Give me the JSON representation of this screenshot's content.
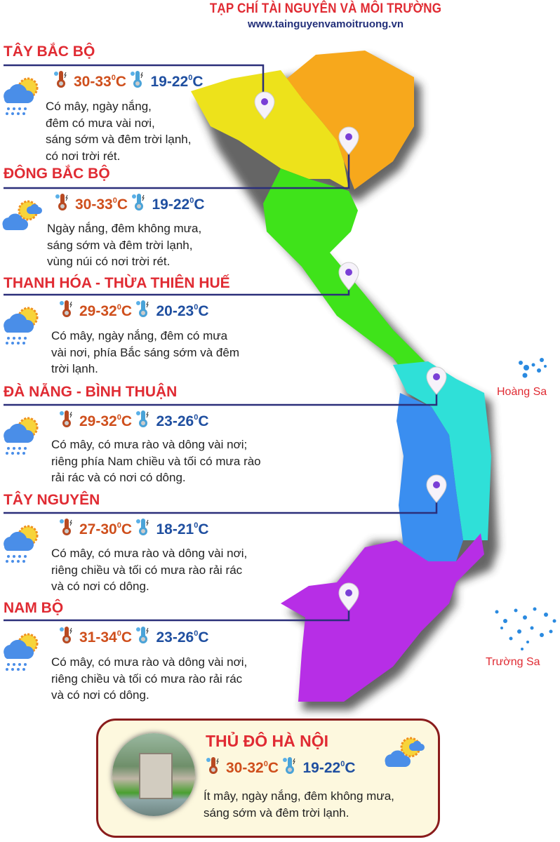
{
  "header": {
    "title": "TẠP CHÍ TÀI NGUYÊN VÀ MÔI TRƯỜNG",
    "url": "www.tainguyenvamoitruong.vn"
  },
  "temp_unit": "C",
  "regions": [
    {
      "name": "TÂY BẮC BỘ",
      "weather_icon": "sun-cloud-rain-icon",
      "high": "30-33",
      "low": "19-22",
      "desc": [
        "Có mây, ngày nắng,",
        "đêm có mưa vài nơi,",
        "sáng sớm và đêm trời lạnh,",
        "có nơi trời rét."
      ]
    },
    {
      "name": "ĐÔNG BẮC BỘ",
      "weather_icon": "sun-cloud-icon",
      "high": "30-33",
      "low": "19-22",
      "desc": [
        "Ngày nắng, đêm không mưa,",
        "sáng sớm và đêm trời lạnh,",
        "vùng núi có nơi trời rét."
      ]
    },
    {
      "name": "THANH HÓA - THỪA THIÊN HUẾ",
      "weather_icon": "sun-cloud-rain-icon",
      "high": "29-32",
      "low": "20-23",
      "desc": [
        "Có mây, ngày nắng, đêm có mưa",
        "vài nơi, phía Bắc sáng sớm và đêm",
        "trời lạnh."
      ]
    },
    {
      "name": "ĐÀ NẴNG - BÌNH THUẬN",
      "weather_icon": "sun-cloud-rain-icon",
      "high": "29-32",
      "low": "23-26",
      "desc": [
        "Có mây, có mưa rào và dông vài nơi;",
        "riêng phía Nam chiều và tối có mưa rào",
        "rải rác và có nơi có dông."
      ]
    },
    {
      "name": "TÂY NGUYÊN",
      "weather_icon": "sun-cloud-rain-icon",
      "high": "27-30",
      "low": "18-21",
      "desc": [
        "Có mây, có mưa rào và dông vài nơi,",
        "riêng chiều và tối có mưa rào rải rác",
        "và có nơi có dông."
      ]
    },
    {
      "name": "NAM BỘ",
      "weather_icon": "sun-cloud-rain-icon",
      "high": "31-34",
      "low": "23-26",
      "desc": [
        "Có mây, có mưa rào và dông vài nơi,",
        "riêng chiều và tối có mưa rào rải rác",
        "và có nơi có dông."
      ]
    }
  ],
  "islands": {
    "hoang_sa": "Hoàng Sa",
    "truong_sa": "Trường Sa"
  },
  "capital": {
    "name": "THỦ ĐÔ HÀ NỘI",
    "weather_icon": "sun-cloud-icon",
    "high": "30-32",
    "low": "19-22",
    "desc": [
      "Ít mây, ngày nắng, đêm không mưa,",
      "sáng sớm và đêm trời lạnh."
    ]
  },
  "colors": {
    "title_red": "#e02b33",
    "navy": "#23307a",
    "northwest": "#ede21b",
    "northeast": "#f7a81c",
    "north_central": "#3fe31a",
    "south_central_coast": "#2fe0d8",
    "central_highlands": "#3a8ef0",
    "south": "#b72ee6"
  }
}
